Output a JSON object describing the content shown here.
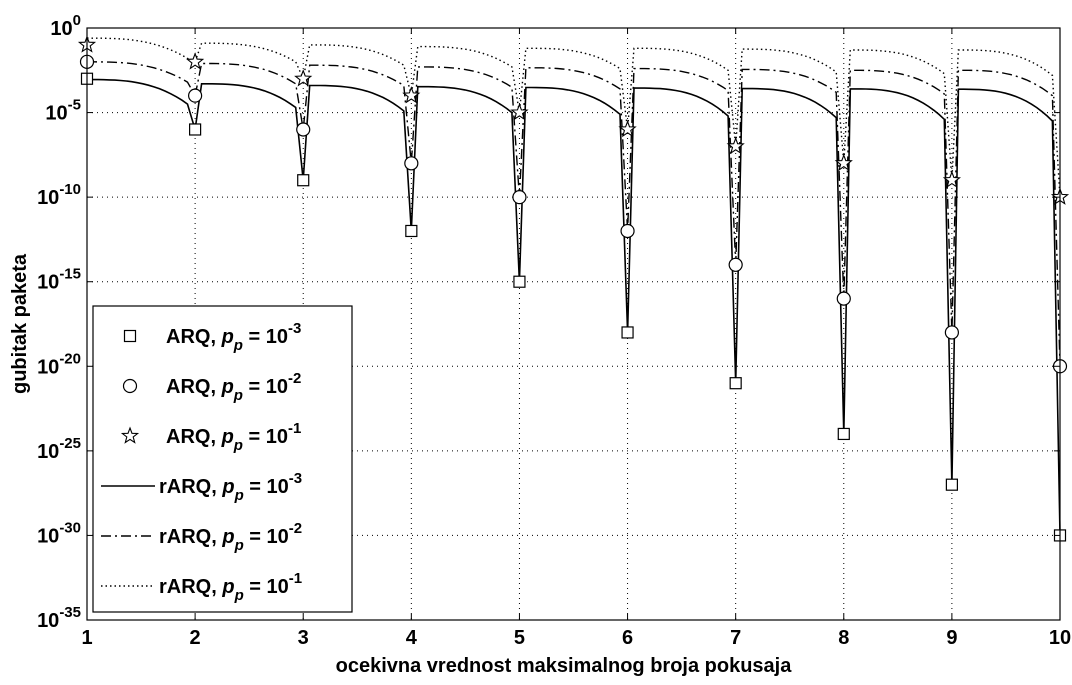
{
  "chart_data": {
    "type": "line",
    "title": "",
    "xlabel": "ocekivna vrednost maksimalnog broja pokusaja",
    "ylabel": "gubitak paketa",
    "xlim": [
      1,
      10
    ],
    "ylim_exp": [
      -35,
      0
    ],
    "yscale": "log",
    "grid": true,
    "x_ticks": [
      "1",
      "2",
      "3",
      "4",
      "5",
      "6",
      "7",
      "8",
      "9",
      "10"
    ],
    "y_ticks": [
      {
        "exp": 0,
        "base": "10",
        "sup": "0"
      },
      {
        "exp": -5,
        "base": "10",
        "sup": "-5"
      },
      {
        "exp": -10,
        "base": "10",
        "sup": "-10"
      },
      {
        "exp": -15,
        "base": "10",
        "sup": "-15"
      },
      {
        "exp": -20,
        "base": "10",
        "sup": "-20"
      },
      {
        "exp": -25,
        "base": "10",
        "sup": "-25"
      },
      {
        "exp": -30,
        "base": "10",
        "sup": "-30"
      },
      {
        "exp": -35,
        "base": "10",
        "sup": "-35"
      }
    ],
    "legend_position": "bottom-left",
    "series": [
      {
        "name": "ARQ, p_p = 10^-3",
        "label_prefix": "ARQ, ",
        "label_p": "p",
        "label_sub": "p",
        "label_eq": " = 10",
        "label_sup": "-3",
        "style": "markers",
        "marker": "square",
        "x": [
          1,
          2,
          3,
          4,
          5,
          6,
          7,
          8,
          9,
          10
        ],
        "y_exp": [
          -3,
          -6,
          -9,
          -12,
          -15,
          -18,
          -21,
          -24,
          -27,
          -30
        ]
      },
      {
        "name": "ARQ, p_p = 10^-2",
        "label_prefix": "ARQ, ",
        "label_p": "p",
        "label_sub": "p",
        "label_eq": " = 10",
        "label_sup": "-2",
        "style": "markers",
        "marker": "circle",
        "x": [
          1,
          2,
          3,
          4,
          5,
          6,
          7,
          8,
          9,
          10
        ],
        "y_exp": [
          -2,
          -4,
          -6,
          -8,
          -10,
          -12,
          -14,
          -16,
          -18,
          -20
        ]
      },
      {
        "name": "ARQ, p_p = 10^-1",
        "label_prefix": "ARQ, ",
        "label_p": "p",
        "label_sub": "p",
        "label_eq": " = 10",
        "label_sup": "-1",
        "style": "markers",
        "marker": "star",
        "x": [
          1,
          2,
          3,
          4,
          5,
          6,
          7,
          8,
          9,
          10
        ],
        "y_exp": [
          -1,
          -2,
          -3,
          -4,
          -5,
          -6,
          -7,
          -8,
          -9,
          -10
        ]
      },
      {
        "name": "rARQ, p_p = 10^-3",
        "label_prefix": "rARQ, ",
        "label_p": "p",
        "label_sub": "p",
        "label_eq": " = 10",
        "label_sup": "-3",
        "style": "solid",
        "peaks_y_exp": [
          -3.05,
          -3.3,
          -3.4,
          -3.47,
          -3.52,
          -3.55,
          -3.58,
          -3.6,
          -3.62
        ],
        "pre_dip_y_exp": [
          -4.5,
          -4.7,
          -4.9,
          -5.0,
          -5.1,
          -5.2,
          -5.3,
          -5.4,
          -5.5
        ],
        "dip_y_exp": [
          -6,
          -9,
          -12,
          -15,
          -18,
          -21,
          -24,
          -27,
          -30
        ]
      },
      {
        "name": "rARQ, p_p = 10^-2",
        "label_prefix": "rARQ, ",
        "label_p": "p",
        "label_sub": "p",
        "label_eq": " = 10",
        "label_sup": "-2",
        "style": "dashdot",
        "peaks_y_exp": [
          -2.0,
          -2.1,
          -2.2,
          -2.3,
          -2.35,
          -2.4,
          -2.45,
          -2.5,
          -2.5
        ],
        "pre_dip_y_exp": [
          -3.2,
          -3.3,
          -3.4,
          -3.5,
          -3.6,
          -3.7,
          -3.8,
          -3.9,
          -4.0
        ],
        "dip_y_exp": [
          -4,
          -6,
          -8,
          -10,
          -12,
          -14,
          -16,
          -18,
          -20
        ]
      },
      {
        "name": "rARQ, p_p = 10^-1",
        "label_prefix": "rARQ, ",
        "label_p": "p",
        "label_sub": "p",
        "label_eq": " = 10",
        "label_sup": "-1",
        "style": "dotted",
        "peaks_y_exp": [
          -0.6,
          -0.9,
          -1.0,
          -1.1,
          -1.2,
          -1.2,
          -1.25,
          -1.3,
          -1.3
        ],
        "pre_dip_y_exp": [
          -1.8,
          -2.0,
          -2.2,
          -2.3,
          -2.4,
          -2.5,
          -2.6,
          -2.7,
          -2.8
        ],
        "dip_y_exp": [
          -2,
          -3,
          -4,
          -5,
          -6,
          -7,
          -8,
          -9,
          -10
        ]
      }
    ]
  }
}
